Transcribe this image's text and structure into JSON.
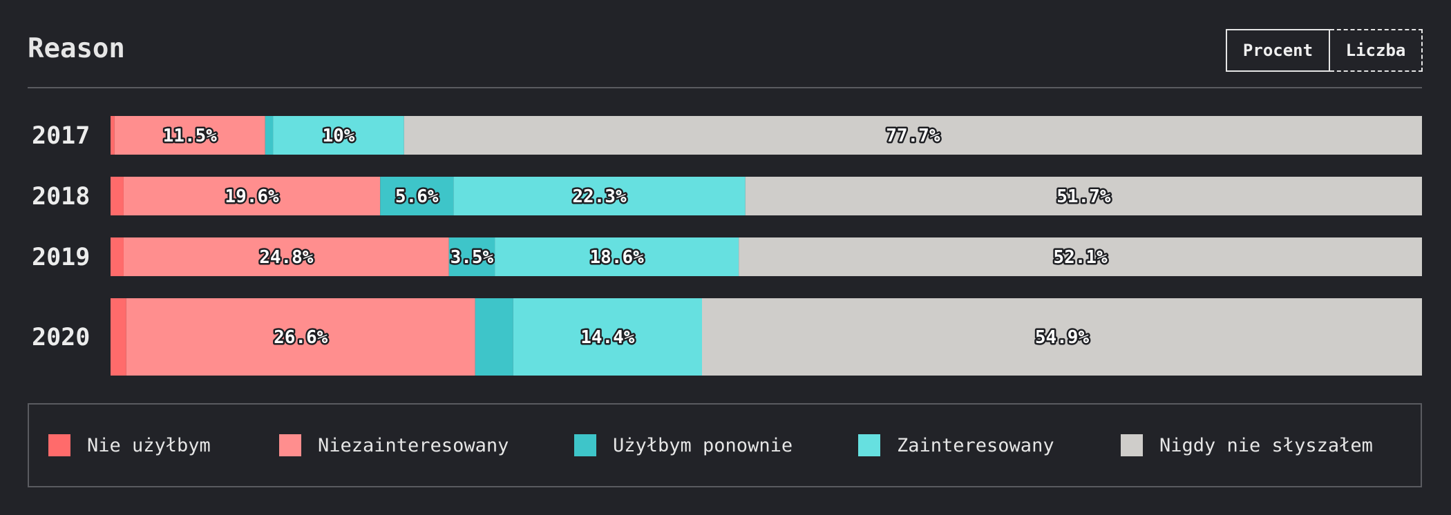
{
  "header": {
    "title": "Reason",
    "toggle": {
      "percent_label": "Procent",
      "count_label": "Liczba"
    }
  },
  "colors": {
    "nie_uzylbym": "#ff6b6b",
    "niezainteresowany": "#ff8e8e",
    "uzylbym_ponownie": "#3ec5c9",
    "zainteresowany": "#66e0e0",
    "nigdy_nie_slyszalem": "#cfcdca",
    "background": "#222328"
  },
  "legend": {
    "items": [
      {
        "label": "Nie użyłbym",
        "color": "#ff6b6b"
      },
      {
        "label": "Niezainteresowany",
        "color": "#ff8e8e"
      },
      {
        "label": "Użyłbym ponownie",
        "color": "#3ec5c9"
      },
      {
        "label": "Zainteresowany",
        "color": "#66e0e0"
      },
      {
        "label": "Nigdy nie słyszałem",
        "color": "#cfcdca"
      }
    ]
  },
  "chart_data": {
    "type": "bar",
    "orientation": "horizontal",
    "stacked": true,
    "normalized": true,
    "title": "Reason",
    "categories": [
      "2017",
      "2018",
      "2019",
      "2020"
    ],
    "series": [
      {
        "name": "Nie użyłbym",
        "values": [
          0.3,
          1.0,
          1.0,
          1.2
        ],
        "labels": [
          "",
          "",
          "",
          ""
        ]
      },
      {
        "name": "Niezainteresowany",
        "values": [
          11.5,
          19.6,
          24.8,
          26.6
        ],
        "labels": [
          "11.5%",
          "19.6%",
          "24.8%",
          "26.6%"
        ]
      },
      {
        "name": "Użyłbym ponownie",
        "values": [
          0.6,
          5.6,
          3.5,
          2.9
        ],
        "labels": [
          "",
          "5.6%",
          "3.5%",
          ""
        ]
      },
      {
        "name": "Zainteresowany",
        "values": [
          10,
          22.3,
          18.6,
          14.4
        ],
        "labels": [
          "10%",
          "22.3%",
          "18.6%",
          "14.4%"
        ]
      },
      {
        "name": "Nigdy nie słyszałem",
        "values": [
          77.7,
          51.7,
          52.1,
          54.9
        ],
        "labels": [
          "77.7%",
          "51.7%",
          "52.1%",
          "54.9%"
        ]
      }
    ],
    "legend_position": "bottom",
    "grid": false
  }
}
